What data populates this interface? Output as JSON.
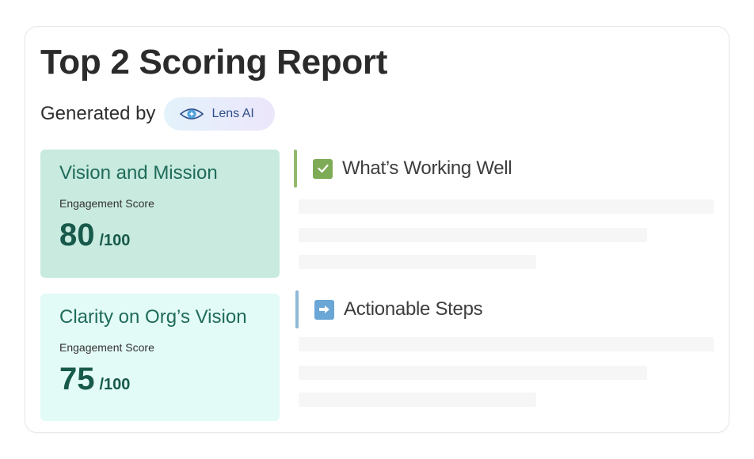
{
  "report": {
    "title": "Top 2 Scoring Report",
    "generated_by_label": "Generated by",
    "ai_badge_label": "Lens AI"
  },
  "scores": [
    {
      "title": "Vision and Mission",
      "subtitle": "Engagement Score",
      "value": "80",
      "denominator": "/100",
      "bg_color": "#c8eadf"
    },
    {
      "title": "Clarity on Org’s Vision",
      "subtitle": "Engagement Score",
      "value": "75",
      "denominator": "/100",
      "bg_color": "#e3fbf7"
    }
  ],
  "sections": {
    "working_well": {
      "title": "What’s Working Well",
      "icon": "check-icon",
      "accent": "#93b86b"
    },
    "actionable_steps": {
      "title": "Actionable Steps",
      "icon": "right-arrow-icon",
      "accent": "#8fb8d6"
    }
  }
}
